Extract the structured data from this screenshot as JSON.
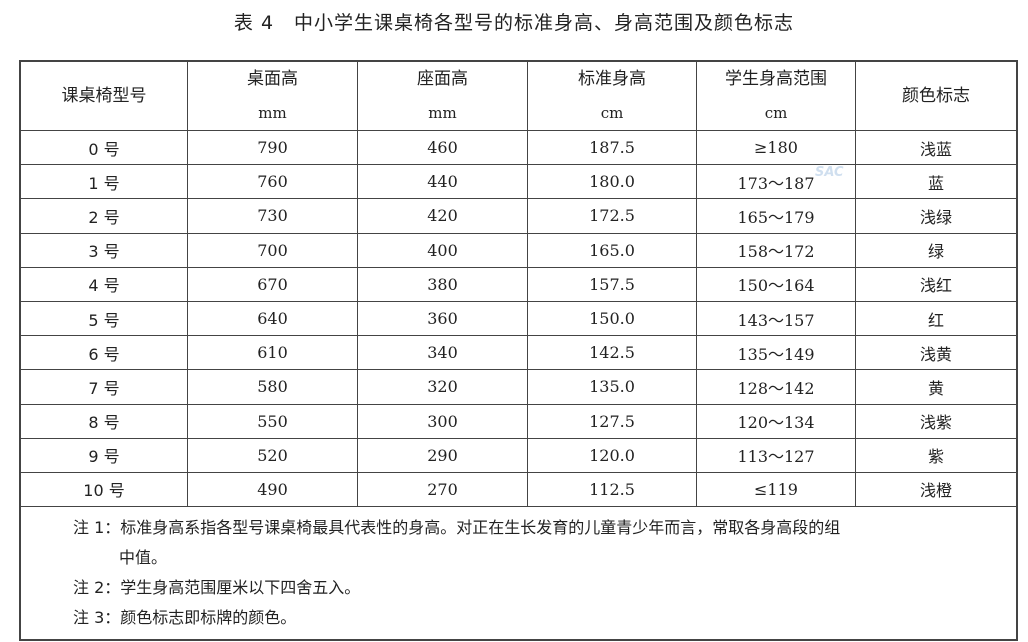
{
  "title": "表 4　中小学生课桌椅各型号的标准身高、身高范围及颜色标志",
  "watermark": "SAC",
  "headers": [
    {
      "label": "课桌椅型号",
      "unit": ""
    },
    {
      "label": "桌面高",
      "unit": "mm"
    },
    {
      "label": "座面高",
      "unit": "mm"
    },
    {
      "label": "标准身高",
      "unit": "cm"
    },
    {
      "label": "学生身高范围",
      "unit": "cm"
    },
    {
      "label": "颜色标志",
      "unit": ""
    }
  ],
  "rows": [
    [
      "0 号",
      "790",
      "460",
      "187.5",
      "≥180",
      "浅蓝"
    ],
    [
      "1 号",
      "760",
      "440",
      "180.0",
      "173～187",
      "蓝"
    ],
    [
      "2 号",
      "730",
      "420",
      "172.5",
      "165～179",
      "浅绿"
    ],
    [
      "3 号",
      "700",
      "400",
      "165.0",
      "158～172",
      "绿"
    ],
    [
      "4 号",
      "670",
      "380",
      "157.5",
      "150～164",
      "浅红"
    ],
    [
      "5 号",
      "640",
      "360",
      "150.0",
      "143～157",
      "红"
    ],
    [
      "6 号",
      "610",
      "340",
      "142.5",
      "135～149",
      "浅黄"
    ],
    [
      "7 号",
      "580",
      "320",
      "135.0",
      "128～142",
      "黄"
    ],
    [
      "8 号",
      "550",
      "300",
      "127.5",
      "120～134",
      "浅紫"
    ],
    [
      "9 号",
      "520",
      "290",
      "120.0",
      "113～127",
      "紫"
    ],
    [
      "10 号",
      "490",
      "270",
      "112.5",
      "≤119",
      "浅橙"
    ]
  ],
  "notes": [
    "注 1：标准身高系指各型号课桌椅最具代表性的身高。对正在生长发育的儿童青少年而言，常取各身高段的组",
    "中值。",
    "注 2：学生身高范围厘米以下四舍五入。",
    "注 3：颜色标志即标牌的颜色。"
  ]
}
